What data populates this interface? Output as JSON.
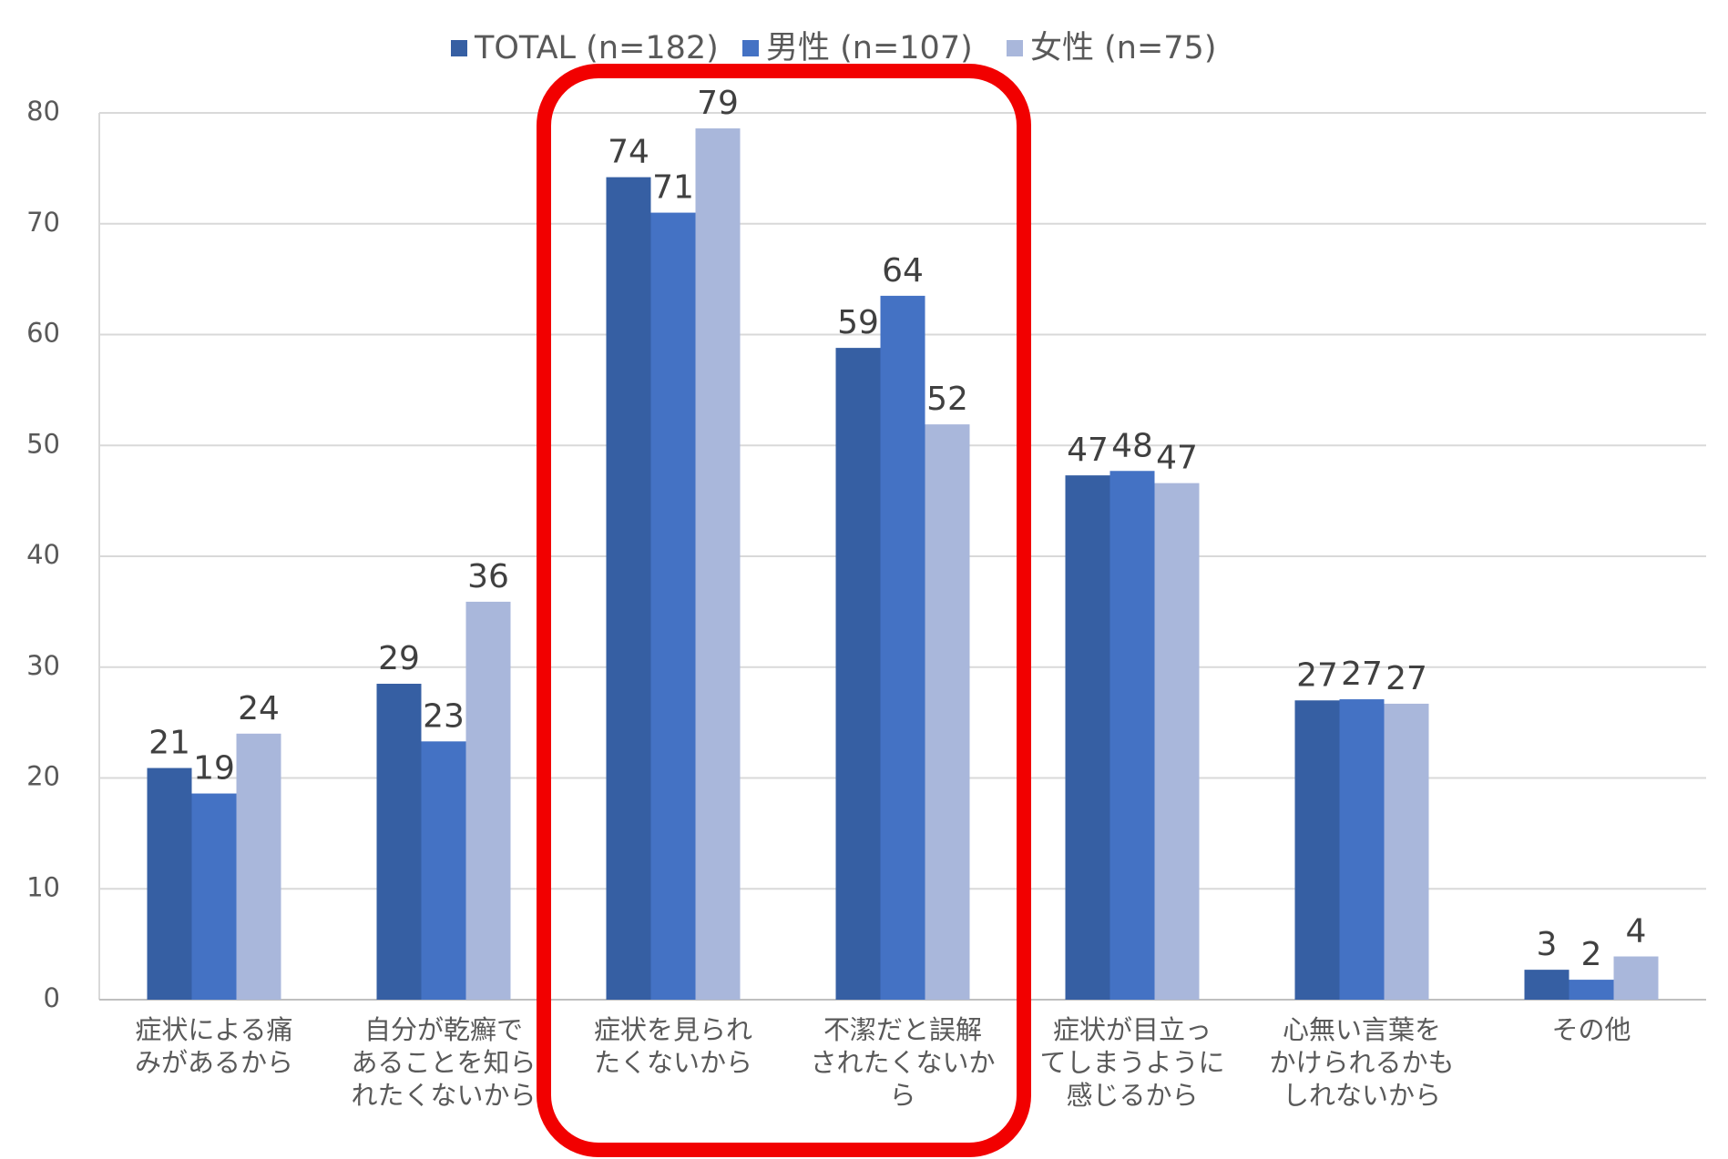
{
  "chart_data": {
    "type": "bar",
    "categories": [
      "症状による痛\nみがあるから",
      "自分が乾癬で\nあることを知ら\nれたくないから",
      "症状を見られ\nたくないから",
      "不潔だと誤解\nされたくないか\nら",
      "症状が目立っ\nてしまうように\n感じるから",
      "心無い言葉を\nかけられるかも\nしれないから",
      "その他"
    ],
    "series": [
      {
        "name": "TOTAL (n=182)",
        "color": "#365fa3",
        "values": [
          20.9,
          28.5,
          74.2,
          58.8,
          47.3,
          27.0,
          2.7
        ],
        "value_labels": [
          "21",
          "29",
          "74",
          "59",
          "47",
          "27",
          "3"
        ]
      },
      {
        "name": "男性 (n=107)",
        "color": "#4472c4",
        "values": [
          18.6,
          23.3,
          71.0,
          63.5,
          47.7,
          27.1,
          1.8
        ],
        "value_labels": [
          "19",
          "23",
          "71",
          "64",
          "48",
          "27",
          "2"
        ]
      },
      {
        "name": "女性 (n=75)",
        "color": "#a9b7db",
        "values": [
          24.0,
          35.9,
          78.6,
          51.9,
          46.6,
          26.7,
          3.9
        ],
        "value_labels": [
          "24",
          "36",
          "79",
          "52",
          "47",
          "27",
          "4"
        ]
      }
    ],
    "ylim": [
      0,
      80
    ],
    "yticks": [
      0,
      10,
      20,
      30,
      40,
      50,
      60,
      70,
      80
    ],
    "grid": true,
    "legend": "top"
  }
}
